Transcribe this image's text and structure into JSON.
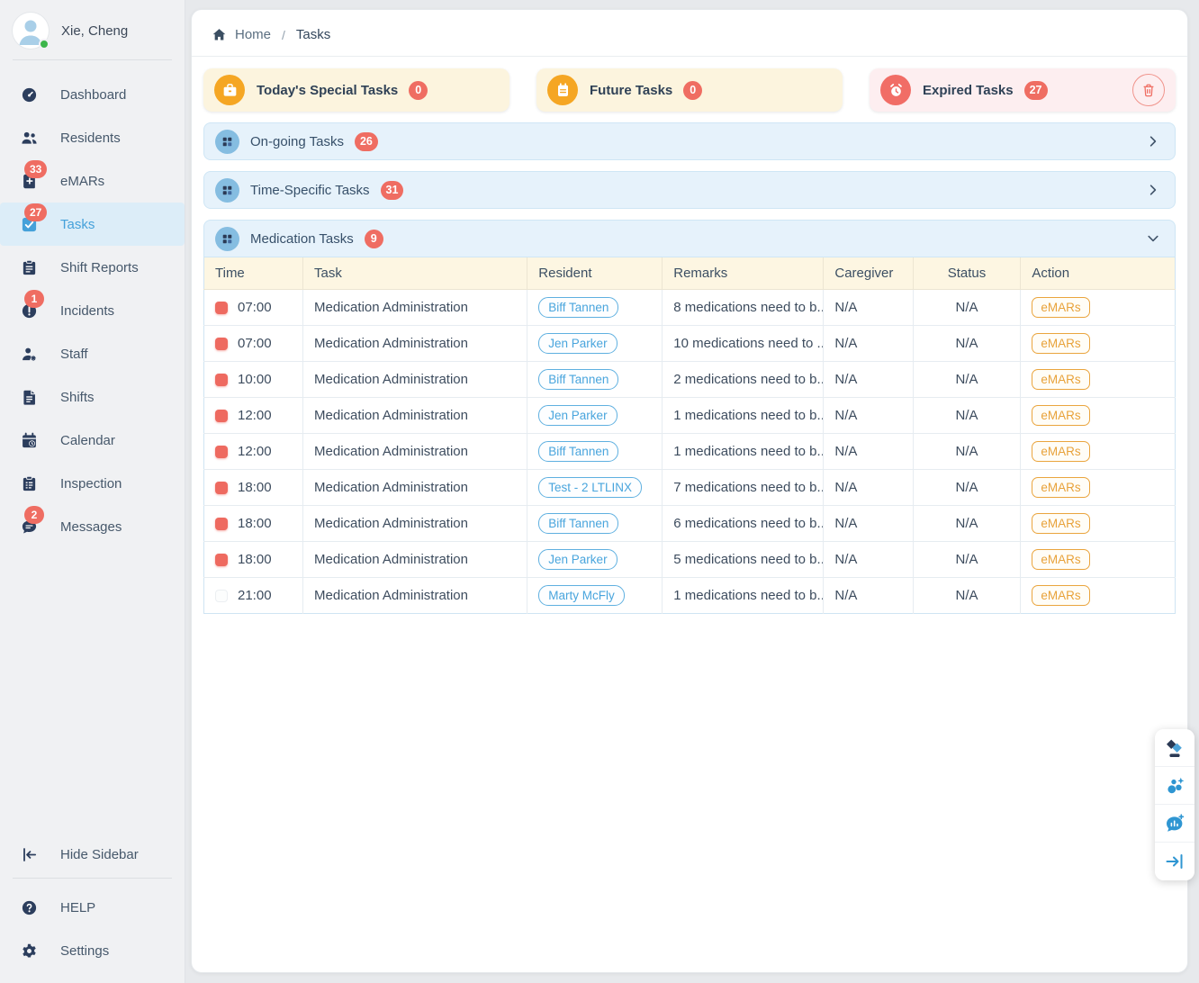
{
  "sidebar": {
    "user": {
      "name": "Xie, Cheng",
      "status": "online"
    },
    "items": [
      {
        "label": "Dashboard",
        "icon": "dashboard-icon"
      },
      {
        "label": "Residents",
        "icon": "residents-icon"
      },
      {
        "label": "eMARs",
        "icon": "emars-icon",
        "badge": "33"
      },
      {
        "label": "Tasks",
        "icon": "tasks-icon",
        "badge": "27",
        "active": true
      },
      {
        "label": "Shift Reports",
        "icon": "shift-reports-icon"
      },
      {
        "label": "Incidents",
        "icon": "incidents-icon",
        "badge": "1"
      },
      {
        "label": "Staff",
        "icon": "staff-icon"
      },
      {
        "label": "Shifts",
        "icon": "shifts-icon"
      },
      {
        "label": "Calendar",
        "icon": "calendar-icon"
      },
      {
        "label": "Inspection",
        "icon": "inspection-icon"
      },
      {
        "label": "Messages",
        "icon": "messages-icon",
        "badge": "2"
      }
    ],
    "footer_items": [
      {
        "label": "Hide Sidebar",
        "icon": "hide-sidebar-icon"
      },
      {
        "label": "HELP",
        "icon": "help-icon"
      },
      {
        "label": "Settings",
        "icon": "settings-icon"
      }
    ]
  },
  "breadcrumb": {
    "home": "Home",
    "separator": "/",
    "current": "Tasks"
  },
  "summary_cards": [
    {
      "title": "Today's Special Tasks",
      "count": "0",
      "theme": "yellow",
      "icon": "briefcase-icon"
    },
    {
      "title": "Future Tasks",
      "count": "0",
      "theme": "yellow",
      "icon": "agenda-icon"
    },
    {
      "title": "Expired Tasks",
      "count": "27",
      "theme": "red",
      "icon": "alarm-icon",
      "action_icon": "trash-icon"
    }
  ],
  "sections": [
    {
      "title": "On-going Tasks",
      "count": "26",
      "state": "collapsed"
    },
    {
      "title": "Time-Specific Tasks",
      "count": "31",
      "state": "collapsed"
    },
    {
      "title": "Medication Tasks",
      "count": "9",
      "state": "expanded"
    }
  ],
  "table": {
    "columns": [
      "Time",
      "Task",
      "Resident",
      "Remarks",
      "Caregiver",
      "Status",
      "Action"
    ],
    "action_label": "eMARs",
    "rows": [
      {
        "time": "07:00",
        "task": "Medication Administration",
        "resident": "Biff Tannen",
        "remarks": "8 medications need to b...",
        "caregiver": "N/A",
        "status": "N/A",
        "checked": true
      },
      {
        "time": "07:00",
        "task": "Medication Administration",
        "resident": "Jen Parker",
        "remarks": "10 medications need to ...",
        "caregiver": "N/A",
        "status": "N/A",
        "checked": true
      },
      {
        "time": "10:00",
        "task": "Medication Administration",
        "resident": "Biff Tannen",
        "remarks": "2 medications need to b...",
        "caregiver": "N/A",
        "status": "N/A",
        "checked": true
      },
      {
        "time": "12:00",
        "task": "Medication Administration",
        "resident": "Jen Parker",
        "remarks": "1 medications need to b...",
        "caregiver": "N/A",
        "status": "N/A",
        "checked": true
      },
      {
        "time": "12:00",
        "task": "Medication Administration",
        "resident": "Biff Tannen",
        "remarks": "1 medications need to b...",
        "caregiver": "N/A",
        "status": "N/A",
        "checked": true
      },
      {
        "time": "18:00",
        "task": "Medication Administration",
        "resident": "Test - 2 LTLINX",
        "remarks": "7 medications need to b...",
        "caregiver": "N/A",
        "status": "N/A",
        "checked": true
      },
      {
        "time": "18:00",
        "task": "Medication Administration",
        "resident": "Biff Tannen",
        "remarks": "6 medications need to b...",
        "caregiver": "N/A",
        "status": "N/A",
        "checked": true
      },
      {
        "time": "18:00",
        "task": "Medication Administration",
        "resident": "Jen Parker",
        "remarks": "5 medications need to b...",
        "caregiver": "N/A",
        "status": "N/A",
        "checked": true
      },
      {
        "time": "21:00",
        "task": "Medication Administration",
        "resident": "Marty McFly",
        "remarks": "1 medications need to b...",
        "caregiver": "N/A",
        "status": "N/A",
        "checked": false
      }
    ]
  },
  "floating_buttons": [
    {
      "icon": "ltlinx-widget-icon"
    },
    {
      "icon": "ai-assistant-icon"
    },
    {
      "icon": "feedback-chart-icon"
    },
    {
      "icon": "collapse-panel-icon"
    }
  ],
  "colors": {
    "accent_blue": "#45a1da",
    "badge_red": "#ef6d62",
    "warning_orange": "#f5a623",
    "card_yellow_bg": "#fcf4de",
    "card_pink_bg": "#fdeef0",
    "section_blue_bg": "#e6f2fb",
    "table_header_bg": "#fdf6e2",
    "sidebar_active_bg": "#dcedf8"
  }
}
